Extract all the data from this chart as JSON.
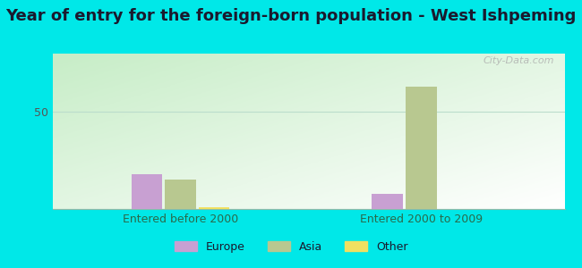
{
  "title": "Year of entry for the foreign-born population - West Ishpeming",
  "categories": [
    "Entered before 2000",
    "Entered 2000 to 2009"
  ],
  "series": {
    "Europe": [
      18,
      8
    ],
    "Asia": [
      15,
      63
    ],
    "Other": [
      1,
      0
    ]
  },
  "colors": {
    "Europe": "#c8a0d2",
    "Asia": "#b8c890",
    "Other": "#f0e060"
  },
  "ylim": [
    0,
    80
  ],
  "yticks": [
    0,
    50
  ],
  "plot_bg_top": "#f0faf0",
  "plot_bg_bottom": "#c8eec8",
  "outer_background": "#00e8e8",
  "title_fontsize": 13,
  "legend_fontsize": 9,
  "bar_width": 0.06,
  "group_centers": [
    0.25,
    0.72
  ],
  "watermark": "City-Data.com",
  "title_color": "#1a1a2e",
  "xticklabel_color": "#2a6a4a",
  "yticklabel_color": "#555555"
}
